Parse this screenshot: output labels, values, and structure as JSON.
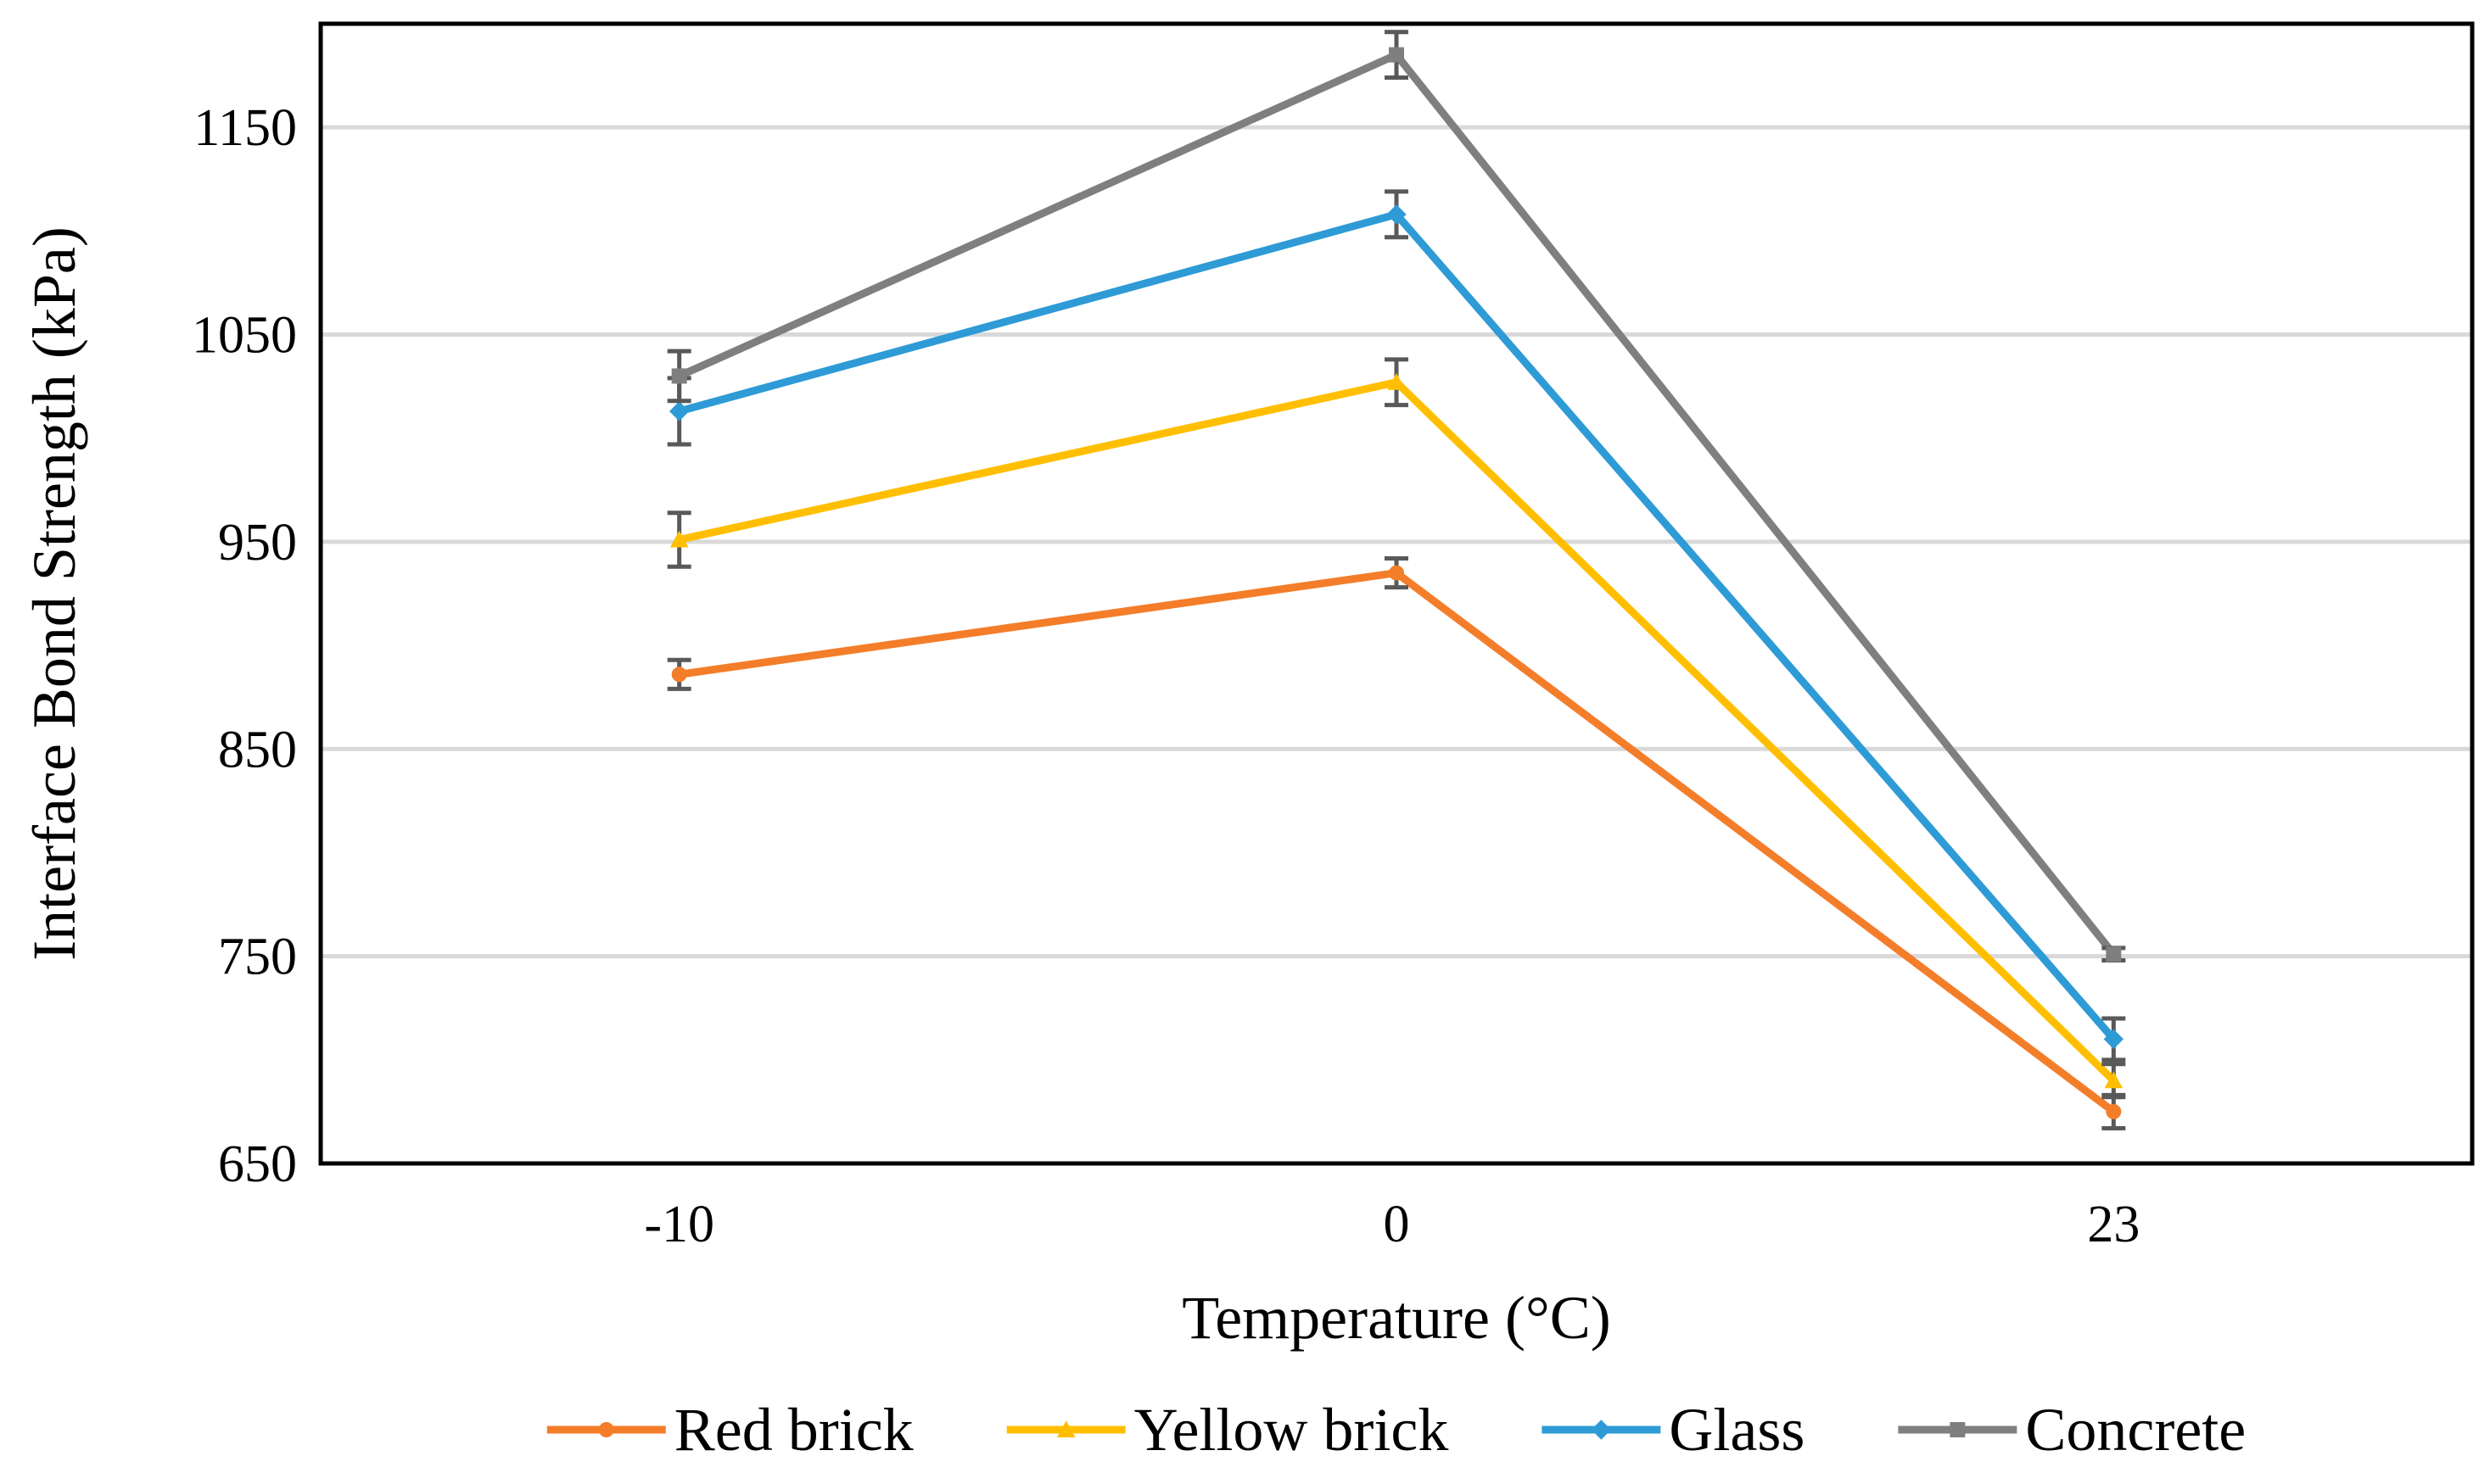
{
  "chart_data": {
    "type": "line",
    "title": "",
    "xlabel": "Temperature (°C)",
    "ylabel": "Interface Bond Strength (kPa)",
    "categories": [
      "-10",
      "0",
      "23"
    ],
    "ylim": [
      650,
      1200
    ],
    "yticks": [
      650,
      750,
      850,
      950,
      1050,
      1150
    ],
    "grid": true,
    "legend_position": "bottom",
    "series": [
      {
        "name": "Red brick",
        "color": "#F47D2A",
        "marker": "circle",
        "values": [
          886,
          935,
          675
        ],
        "errors": [
          7,
          7,
          8
        ]
      },
      {
        "name": "Yellow brick",
        "color": "#FFBF00",
        "marker": "triangle",
        "values": [
          951,
          1027,
          690
        ],
        "errors": [
          13,
          11,
          8
        ]
      },
      {
        "name": "Glass",
        "color": "#2E9BD6",
        "marker": "diamond",
        "values": [
          1013,
          1108,
          710
        ],
        "errors": [
          16,
          11,
          10
        ]
      },
      {
        "name": "Concrete",
        "color": "#7F7F7F",
        "marker": "square",
        "values": [
          1030,
          1185,
          751
        ],
        "errors": [
          12,
          11,
          3
        ]
      }
    ],
    "errorbar_color": "#595959"
  }
}
